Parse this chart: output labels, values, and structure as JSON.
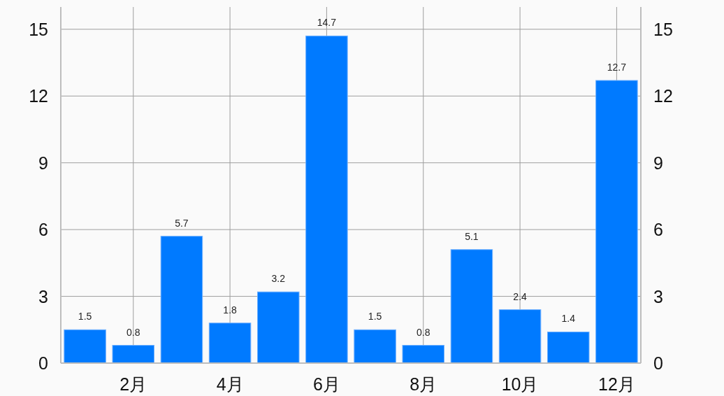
{
  "chart_data": {
    "type": "bar",
    "categories": [
      null,
      "2月",
      null,
      "4月",
      null,
      "6月",
      null,
      "8月",
      null,
      "10月",
      null,
      "12月"
    ],
    "values": [
      1.5,
      0.8,
      5.7,
      1.8,
      3.2,
      14.7,
      1.5,
      0.8,
      5.1,
      2.4,
      1.4,
      12.7
    ],
    "color": "#007aff",
    "ylim": [
      0,
      16
    ],
    "yticks": [
      0,
      3,
      6,
      9,
      12,
      15
    ],
    "y2lim": [
      0,
      16
    ],
    "y2ticks": [
      0,
      3,
      6,
      9,
      12,
      15
    ],
    "grid": true,
    "data_labels": true
  }
}
